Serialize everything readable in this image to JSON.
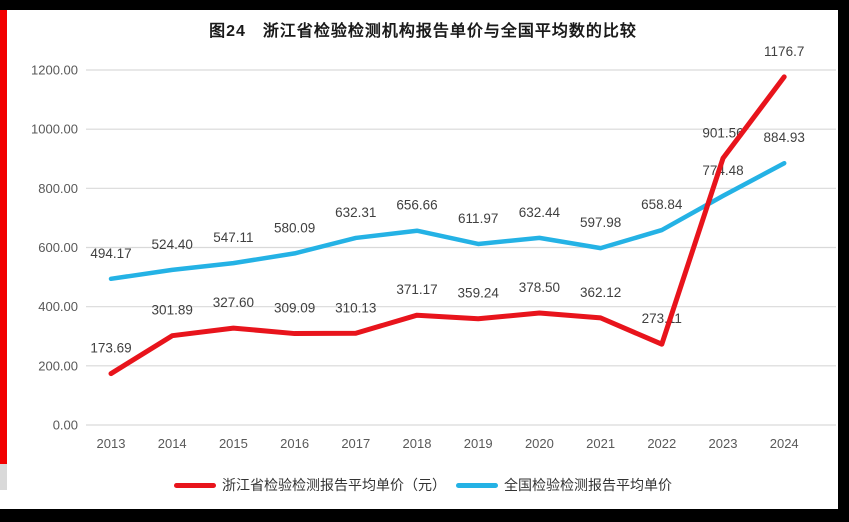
{
  "page": {
    "frame_color": "#000000",
    "margin_bar_color": "#f20000",
    "background": "#ffffff"
  },
  "chart_data": {
    "type": "line",
    "title": "图24　浙江省检验检测机构报告单价与全国平均数的比较",
    "categories": [
      "2013",
      "2014",
      "2015",
      "2016",
      "2017",
      "2018",
      "2019",
      "2020",
      "2021",
      "2022",
      "2023",
      "2024"
    ],
    "series": [
      {
        "name": "浙江省检验检测报告平均单价（元）",
        "color": "#e8141c",
        "values": [
          173.69,
          301.89,
          327.6,
          309.09,
          310.13,
          371.17,
          359.24,
          378.5,
          362.12,
          273.11,
          901.56,
          1176.7
        ],
        "labels": [
          "173.69",
          "301.89",
          "327.60",
          "309.09",
          "310.13",
          "371.17",
          "359.24",
          "378.50",
          "362.12",
          "273.11",
          "901.56",
          "1176.7"
        ]
      },
      {
        "name": "全国检验检测报告平均单价",
        "color": "#24b2e5",
        "values": [
          494.17,
          524.4,
          547.11,
          580.09,
          632.31,
          656.66,
          611.97,
          632.44,
          597.98,
          658.84,
          774.48,
          884.93
        ],
        "labels": [
          "494.17",
          "524.40",
          "547.11",
          "580.09",
          "632.31",
          "656.66",
          "611.97",
          "632.44",
          "597.98",
          "658.84",
          "774.48",
          "884.93"
        ]
      }
    ],
    "y_ticks": [
      "0.00",
      "200.00",
      "400.00",
      "600.00",
      "800.00",
      "1000.00",
      "1200.00"
    ],
    "ylim": [
      0,
      1200
    ],
    "grid": true,
    "legend_position": "bottom",
    "colors": {
      "grid": "#d9d9d9",
      "axis_text": "#595959",
      "data_label_text": "#404040",
      "title_text": "#1a1a1a"
    }
  }
}
